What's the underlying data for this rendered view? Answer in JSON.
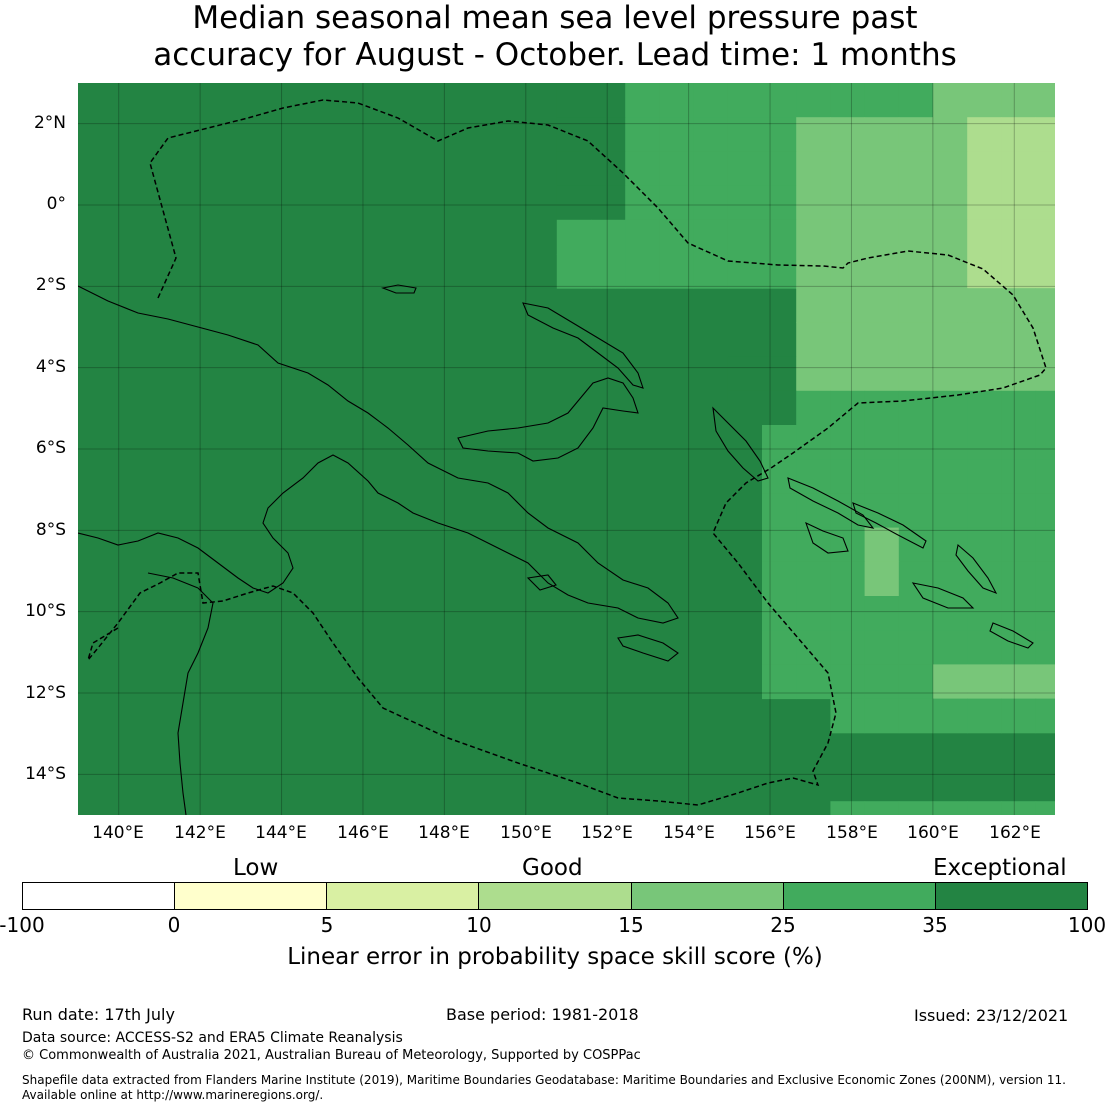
{
  "title": {
    "line1": "Median seasonal mean sea level pressure past",
    "line2": "accuracy for August - October. Lead time: 1 months"
  },
  "map": {
    "lon_range": [
      139,
      163
    ],
    "lat_range": [
      -15,
      3
    ],
    "lon_ticks": [
      "140°E",
      "142°E",
      "144°E",
      "146°E",
      "148°E",
      "150°E",
      "152°E",
      "154°E",
      "156°E",
      "158°E",
      "160°E",
      "162°E"
    ],
    "lat_ticks": [
      "2°N",
      "0°",
      "2°S",
      "4°S",
      "6°S",
      "8°S",
      "10°S",
      "12°S",
      "14°S"
    ],
    "colors": {
      "exceptional": "#238443",
      "good_high": "#41ab5d",
      "good_mid": "#78c679",
      "good_low": "#addd8e",
      "border": "#000000"
    }
  },
  "colorbar": {
    "categories": [
      "Low",
      "Good",
      "Exceptional"
    ],
    "ticks": [
      "-100",
      "0",
      "5",
      "10",
      "15",
      "25",
      "35",
      "100"
    ],
    "colors": [
      "#ffffff",
      "#ffffcc",
      "#d9f0a3",
      "#addd8e",
      "#78c679",
      "#41ab5d",
      "#238443"
    ],
    "label": "Linear error in probability space skill score (%)"
  },
  "footer": {
    "run_date": "Run date: 17th July",
    "base_period": "Base period: 1981-2018",
    "issued": "Issued: 23/12/2021",
    "data_source": "Data source: ACCESS-S2 and ERA5 Climate Reanalysis",
    "copyright": "© Commonwealth of Australia 2021, Australian Bureau of Meteorology, Supported by COSPPac",
    "shapefile_line1": "Shapefile data extracted from Flanders Marine Institute (2019), Maritime Boundaries Geodatabase: Maritime Boundaries and Exclusive Economic Zones (200NM), version 11.",
    "shapefile_line2": "Available online at http://www.marineregions.org/."
  }
}
